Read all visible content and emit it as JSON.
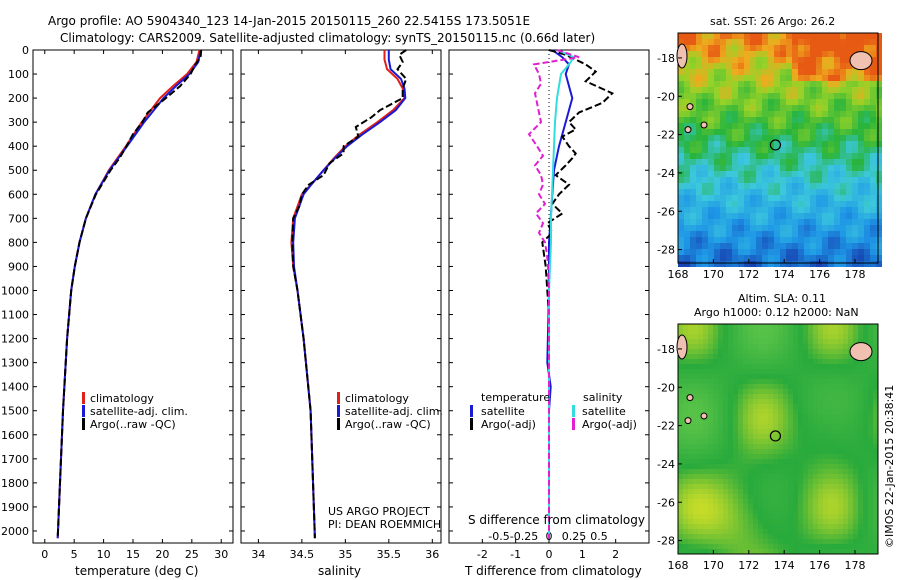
{
  "header": {
    "line1": "Argo profile: AO 5904340_123 14-Jan-2015 20150115_260 22.5415S 173.5051E",
    "line2": "Climatology: CARS2009. Satellite-adjusted climatology: synTS_20150115.nc (0.66d later)"
  },
  "footer": {
    "project": "US ARGO PROJECT",
    "pi": "PI: DEAN ROEMMICH",
    "credit": "©IMOS 22-Jan-2015 20:38:41"
  },
  "colors": {
    "climatology": "#e0201b",
    "satellite": "#1a1ad6",
    "argo": "#000000",
    "salinity_satellite": "#33dddd",
    "argo_adj_salinity": "#e020d0"
  },
  "chart_data": [
    {
      "type": "line",
      "id": "temperature",
      "xlabel": "temperature (deg C)",
      "xticks": [
        0,
        5,
        10,
        15,
        20,
        25,
        30
      ],
      "xlim": [
        -2,
        32
      ],
      "ylim": [
        0,
        2050
      ],
      "yticks": [
        0,
        100,
        200,
        300,
        400,
        500,
        600,
        700,
        800,
        900,
        1000,
        1100,
        1200,
        1300,
        1400,
        1500,
        1600,
        1700,
        1800,
        1900,
        2000
      ],
      "legend": [
        "climatology",
        "satellite-adj. clim.",
        "Argo(..raw -QC)"
      ],
      "series": [
        {
          "name": "climatology",
          "depth": [
            0,
            50,
            100,
            150,
            200,
            300,
            400,
            500,
            600,
            700,
            800,
            900,
            1000,
            1200,
            1500,
            2030
          ],
          "values": [
            26.3,
            25.8,
            24.2,
            21.8,
            19.6,
            16.5,
            13.8,
            10.9,
            8.6,
            7.0,
            5.9,
            5.1,
            4.5,
            3.8,
            3.1,
            2.2
          ]
        },
        {
          "name": "satellite-adj. clim.",
          "depth": [
            0,
            50,
            100,
            150,
            200,
            300,
            400,
            500,
            600,
            700,
            800,
            900,
            1000,
            1200,
            1500,
            2030
          ],
          "values": [
            26.5,
            26.1,
            24.6,
            22.3,
            20.2,
            16.9,
            14.0,
            11.0,
            8.6,
            7.0,
            5.9,
            5.1,
            4.5,
            3.8,
            3.1,
            2.2
          ]
        },
        {
          "name": "Argo(..raw -QC)",
          "depth": [
            0,
            30,
            60,
            100,
            150,
            200,
            260,
            300,
            350,
            400,
            450,
            500,
            600,
            700,
            800,
            900,
            1000,
            1200,
            1500,
            2030
          ],
          "values": [
            26.6,
            26.5,
            25.6,
            24.8,
            23.0,
            20.6,
            17.5,
            16.6,
            15.0,
            13.9,
            12.7,
            11.2,
            8.7,
            7.0,
            5.9,
            5.1,
            4.5,
            3.8,
            3.1,
            2.2
          ]
        }
      ]
    },
    {
      "type": "line",
      "id": "salinity",
      "xlabel": "salinity",
      "xticks": [
        34,
        34.5,
        35,
        35.5,
        36
      ],
      "xlim": [
        33.8,
        36.1
      ],
      "ylim": [
        0,
        2050
      ],
      "legend": [
        "climatology",
        "satellite-adj. clim.",
        "Argo(..raw -QC)"
      ],
      "series": [
        {
          "name": "climatology",
          "depth": [
            0,
            40,
            80,
            120,
            160,
            200,
            250,
            300,
            350,
            400,
            450,
            500,
            550,
            600,
            700,
            800,
            900,
            1000,
            1200,
            1500,
            2030
          ],
          "values": [
            35.45,
            35.45,
            35.48,
            35.6,
            35.66,
            35.68,
            35.55,
            35.37,
            35.17,
            35.0,
            34.87,
            34.75,
            34.63,
            34.5,
            34.4,
            34.38,
            34.4,
            34.45,
            34.52,
            34.6,
            34.65
          ]
        },
        {
          "name": "satellite-adj. clim.",
          "depth": [
            0,
            40,
            80,
            120,
            160,
            200,
            250,
            300,
            350,
            400,
            450,
            500,
            550,
            600,
            700,
            800,
            900,
            1000,
            1200,
            1500,
            2030
          ],
          "values": [
            35.5,
            35.5,
            35.52,
            35.64,
            35.68,
            35.69,
            35.58,
            35.4,
            35.2,
            35.02,
            34.88,
            34.75,
            34.63,
            34.52,
            34.42,
            34.4,
            34.41,
            34.45,
            34.52,
            34.6,
            34.65
          ]
        },
        {
          "name": "Argo(..raw -QC)",
          "depth": [
            0,
            20,
            50,
            80,
            120,
            160,
            200,
            250,
            280,
            320,
            360,
            400,
            430,
            470,
            520,
            560,
            600,
            650,
            700,
            800,
            900,
            1000,
            1200,
            1500,
            2030
          ],
          "values": [
            35.7,
            35.62,
            35.66,
            35.6,
            35.7,
            35.66,
            35.66,
            35.4,
            35.3,
            35.12,
            35.15,
            34.98,
            34.98,
            34.82,
            34.75,
            34.58,
            34.5,
            34.47,
            34.4,
            34.39,
            34.4,
            34.45,
            34.52,
            34.6,
            34.65
          ]
        }
      ]
    },
    {
      "type": "line",
      "id": "difference",
      "xlabel_t": "T difference from climatology",
      "xlabel_s": "S difference from climatology",
      "xticks_t": [
        -2,
        -1,
        0,
        1,
        2
      ],
      "xticks_s": [
        "-0.5",
        "-0.25",
        "0",
        "0.25",
        "0.5"
      ],
      "xlim": [
        -3.0,
        3.0
      ],
      "ylim": [
        0,
        2050
      ],
      "legend_temperature": {
        "title": "temperature",
        "items": [
          "satellite",
          "Argo(-adj)"
        ]
      },
      "legend_salinity": {
        "title": "salinity",
        "items": [
          "satellite",
          "Argo(-adj)"
        ]
      },
      "series": [
        {
          "name": "temperature satellite",
          "depth": [
            0,
            30,
            60,
            100,
            150,
            200,
            250,
            300,
            400,
            500,
            600,
            700,
            800,
            1000,
            1300,
            1400,
            1500,
            2030
          ],
          "values": [
            0.1,
            0.4,
            0.6,
            0.5,
            0.6,
            0.7,
            0.6,
            0.5,
            0.3,
            0.15,
            0.1,
            0.05,
            0.0,
            0.0,
            -0.05,
            0.05,
            0.0,
            0.0
          ]
        },
        {
          "name": "temperature Argo(-adj)",
          "depth": [
            0,
            20,
            40,
            60,
            90,
            130,
            180,
            220,
            260,
            300,
            330,
            360,
            400,
            430,
            450,
            480,
            520,
            560,
            600,
            640,
            680,
            720,
            760,
            800,
            900,
            1000,
            1100,
            1200,
            1400,
            2030
          ],
          "values": [
            0.0,
            0.5,
            0.8,
            1.1,
            1.4,
            1.1,
            1.9,
            1.6,
            0.9,
            0.6,
            0.8,
            0.4,
            0.6,
            0.8,
            0.7,
            0.5,
            0.2,
            0.6,
            0.3,
            0.1,
            0.4,
            -0.05,
            0.1,
            -0.2,
            -0.1,
            -0.05,
            0.0,
            0.0,
            0.0,
            0.0
          ]
        },
        {
          "name": "salinity satellite",
          "depth": [
            0,
            30,
            60,
            100,
            150,
            200,
            300,
            400,
            500,
            600,
            700,
            800,
            900,
            1000,
            1500,
            2030
          ],
          "values": [
            0.08,
            0.25,
            0.2,
            0.12,
            0.1,
            0.08,
            0.06,
            0.05,
            0.04,
            0.03,
            0.02,
            0.02,
            0.01,
            0.0,
            0.0,
            0.0
          ]
        },
        {
          "name": "salinity Argo(-adj)",
          "depth": [
            0,
            30,
            60,
            100,
            140,
            180,
            220,
            260,
            300,
            350,
            400,
            440,
            480,
            520,
            560,
            600,
            640,
            680,
            720,
            760,
            800,
            850,
            900,
            1000,
            2030
          ],
          "values": [
            0.08,
            0.3,
            -0.15,
            -0.1,
            -0.08,
            -0.14,
            -0.12,
            -0.1,
            -0.08,
            -0.2,
            -0.12,
            -0.06,
            -0.14,
            -0.08,
            -0.06,
            -0.1,
            -0.04,
            -0.13,
            -0.06,
            -0.1,
            -0.04,
            -0.02,
            -0.01,
            0.0,
            0.0
          ]
        }
      ]
    },
    {
      "type": "heatmap",
      "id": "sst_map",
      "title": "sat. SST: 26 Argo: 26.2",
      "xticks": [
        168,
        170,
        172,
        174,
        176,
        178
      ],
      "yticks": [
        -18,
        -20,
        -22,
        -24,
        -26,
        -28
      ],
      "xlim": [
        168,
        179.3
      ],
      "ylim": [
        -28.7,
        -16.7
      ],
      "marker": {
        "lon": 173.5051,
        "lat": -22.5415
      }
    },
    {
      "type": "heatmap",
      "id": "sla_map",
      "title_line1": "Altim. SLA: 0.11",
      "title_line2": "Argo h1000: 0.12 h2000: NaN",
      "xticks": [
        168,
        170,
        172,
        174,
        176,
        178
      ],
      "yticks": [
        -18,
        -20,
        -22,
        -24,
        -26,
        -28
      ],
      "xlim": [
        168,
        179.3
      ],
      "ylim": [
        -28.7,
        -16.7
      ],
      "marker": {
        "lon": 173.5051,
        "lat": -22.5415
      }
    }
  ]
}
